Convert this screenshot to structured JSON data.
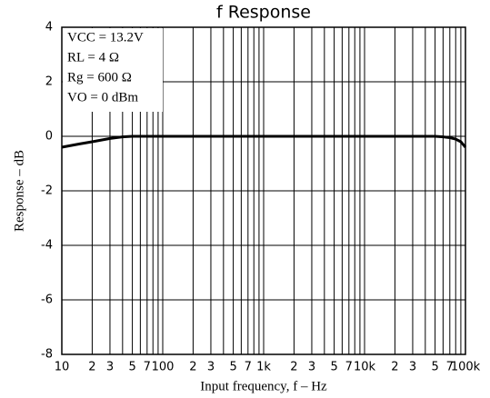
{
  "chart_data": {
    "type": "line",
    "title": "f Response",
    "xlabel": "Input frequency, f – Hz",
    "ylabel": "Response – dB",
    "annotations": [
      "VCC = 13.2V",
      "RL = 4 Ω",
      "Rg = 600 Ω",
      "VO = 0 dBm"
    ],
    "xscale": "log",
    "grid": true,
    "xlim": [
      10,
      100000
    ],
    "ylim": [
      -8,
      4
    ],
    "yticks": [
      4,
      2,
      0,
      -2,
      -4,
      -6,
      -8
    ],
    "xticks": [
      10,
      {
        "value": 20,
        "label": "2"
      },
      {
        "value": 30,
        "label": "3"
      },
      {
        "value": 50,
        "label": "5"
      },
      {
        "value": 70,
        "label": "7"
      },
      100,
      {
        "value": 200,
        "label": "2"
      },
      {
        "value": 300,
        "label": "3"
      },
      {
        "value": 500,
        "label": "5"
      },
      {
        "value": 700,
        "label": "7"
      },
      {
        "value": 1000,
        "label": "1k"
      },
      {
        "value": 2000,
        "label": "2"
      },
      {
        "value": 3000,
        "label": "3"
      },
      {
        "value": 5000,
        "label": "5"
      },
      {
        "value": 7000,
        "label": "7"
      },
      {
        "value": 10000,
        "label": "10k"
      },
      {
        "value": 20000,
        "label": "2"
      },
      {
        "value": 30000,
        "label": "3"
      },
      {
        "value": 50000,
        "label": "5"
      },
      {
        "value": 70000,
        "label": "7"
      },
      {
        "value": 100000,
        "label": "100k"
      }
    ],
    "xminor": [
      40,
      60,
      80,
      90,
      400,
      600,
      800,
      900,
      4000,
      6000,
      8000,
      9000,
      40000,
      60000,
      80000,
      90000
    ],
    "series": [
      {
        "name": "Response",
        "color": "#000000",
        "x": [
          10,
          15,
          20,
          30,
          40,
          50,
          100,
          1000,
          10000,
          50000,
          60000,
          70000,
          80000,
          90000,
          100000
        ],
        "values": [
          -0.4,
          -0.28,
          -0.2,
          -0.08,
          -0.02,
          0,
          0,
          0,
          0,
          0,
          -0.02,
          -0.05,
          -0.1,
          -0.2,
          -0.4
        ]
      }
    ]
  }
}
